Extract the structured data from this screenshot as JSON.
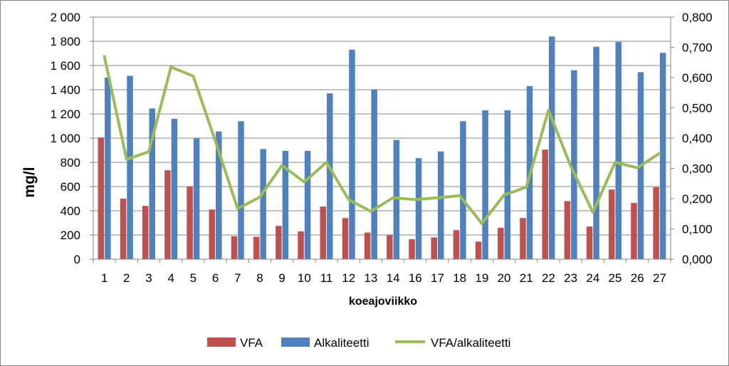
{
  "chart_data": {
    "type": "bar",
    "xlabel": "koeajoviikko",
    "ylabel": "mg/l",
    "y_ticks": [
      "0",
      "200",
      "400",
      "600",
      "800",
      "1 000",
      "1 200",
      "1 400",
      "1 600",
      "1 800",
      "2 000"
    ],
    "y2_ticks": [
      "0,000",
      "0,100",
      "0,200",
      "0,300",
      "0,400",
      "0,500",
      "0,600",
      "0,700",
      "0,800"
    ],
    "ylim": [
      0,
      2000
    ],
    "y2lim": [
      0,
      0.8
    ],
    "grid": "horizontal",
    "legend_position": "bottom",
    "categories": [
      "1",
      "2",
      "3",
      "4",
      "5",
      "6",
      "7",
      "8",
      "9",
      "10",
      "11",
      "12",
      "13",
      "14",
      "16",
      "17",
      "18",
      "19",
      "20",
      "21",
      "22",
      "23",
      "24",
      "25",
      "26",
      "27"
    ],
    "series": [
      {
        "name": "VFA",
        "type": "bar",
        "axis": "left",
        "color": "#C0504D",
        "values": [
          1005,
          500,
          440,
          735,
          600,
          410,
          190,
          185,
          275,
          230,
          435,
          340,
          220,
          200,
          165,
          180,
          240,
          145,
          260,
          340,
          905,
          480,
          270,
          575,
          465,
          595
        ]
      },
      {
        "name": "Alkaliteetti",
        "type": "bar",
        "axis": "left",
        "color": "#4F81BD",
        "values": [
          1500,
          1515,
          1245,
          1160,
          1000,
          1055,
          1140,
          910,
          895,
          895,
          1370,
          1730,
          1400,
          985,
          835,
          890,
          1140,
          1230,
          1230,
          1430,
          1840,
          1560,
          1755,
          1795,
          1545,
          1705
        ]
      },
      {
        "name": "VFA/alkaliteetti",
        "type": "line",
        "axis": "right",
        "color": "#9BBB59",
        "values": [
          0.67,
          0.33,
          0.355,
          0.635,
          0.605,
          0.39,
          0.167,
          0.205,
          0.31,
          0.255,
          0.32,
          0.197,
          0.158,
          0.203,
          0.197,
          0.203,
          0.21,
          0.118,
          0.212,
          0.238,
          0.492,
          0.308,
          0.155,
          0.32,
          0.302,
          0.35
        ]
      }
    ]
  }
}
